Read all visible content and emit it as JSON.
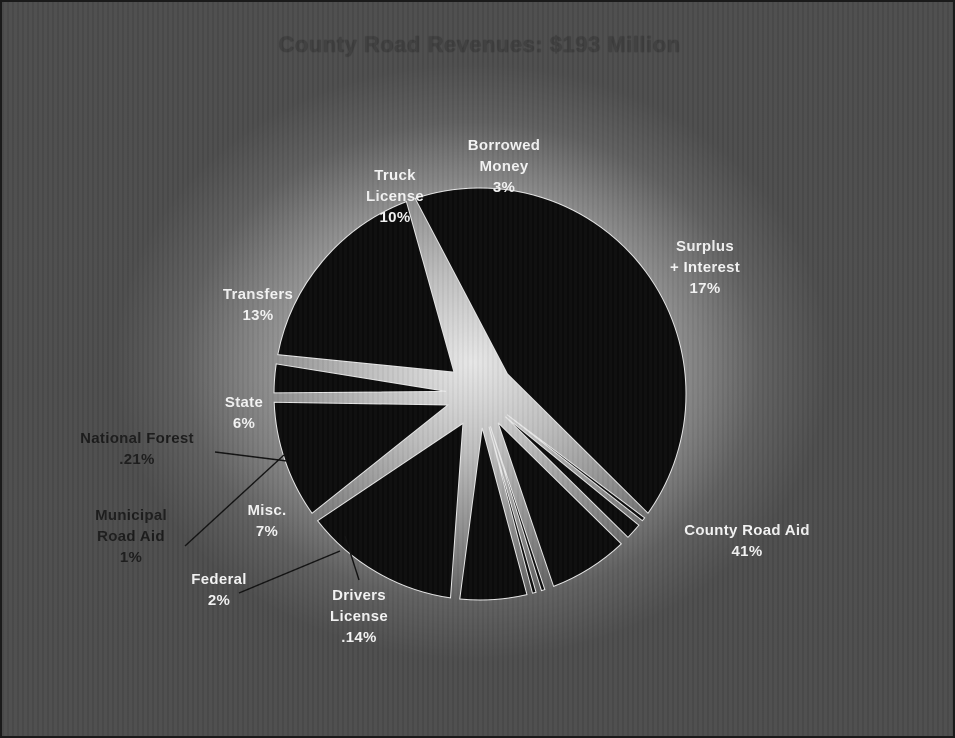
{
  "chart_data": {
    "type": "pie",
    "title": "County Road Revenues: $193 Million",
    "start_category": "Borrowed Money",
    "direction": "clockwise",
    "slices": [
      {
        "name": "Borrowed Money",
        "lines": [
          "Borrowed",
          "Money",
          "3%"
        ],
        "value": 3,
        "label_tone": "light"
      },
      {
        "name": "Surplus + Interest",
        "lines": [
          "Surplus",
          "+ Interest",
          "17%"
        ],
        "value": 17,
        "label_tone": "light"
      },
      {
        "name": "County Road Aid",
        "lines": [
          "County Road Aid",
          "41%"
        ],
        "value": 41,
        "label_tone": "light"
      },
      {
        "name": "Drivers License",
        "lines": [
          "Drivers",
          "License",
          ".14%"
        ],
        "value": 0.14,
        "label_tone": "light"
      },
      {
        "name": "Federal",
        "lines": [
          "Federal",
          "2%"
        ],
        "value": 2,
        "label_tone": "light"
      },
      {
        "name": "Misc.",
        "lines": [
          "Misc.",
          "7%"
        ],
        "value": 7,
        "label_tone": "light"
      },
      {
        "name": "Municipal Road Aid",
        "lines": [
          "Municipal",
          "Road Aid",
          "1%"
        ],
        "value": 1,
        "label_tone": "dark"
      },
      {
        "name": "National Forest",
        "lines": [
          "National Forest",
          ".21%"
        ],
        "value": 0.21,
        "label_tone": "dark"
      },
      {
        "name": "State",
        "lines": [
          "State",
          "6%"
        ],
        "value": 6,
        "label_tone": "light"
      },
      {
        "name": "Transfers",
        "lines": [
          "Transfers",
          "13%"
        ],
        "value": 13,
        "label_tone": "light"
      },
      {
        "name": "Truck License",
        "lines": [
          "Truck",
          "License",
          "10%"
        ],
        "value": 10,
        "label_tone": "light"
      }
    ],
    "colors": {
      "slice": "#0b0b0b",
      "gap": "#e8e8e8",
      "leader": "#111111"
    }
  }
}
